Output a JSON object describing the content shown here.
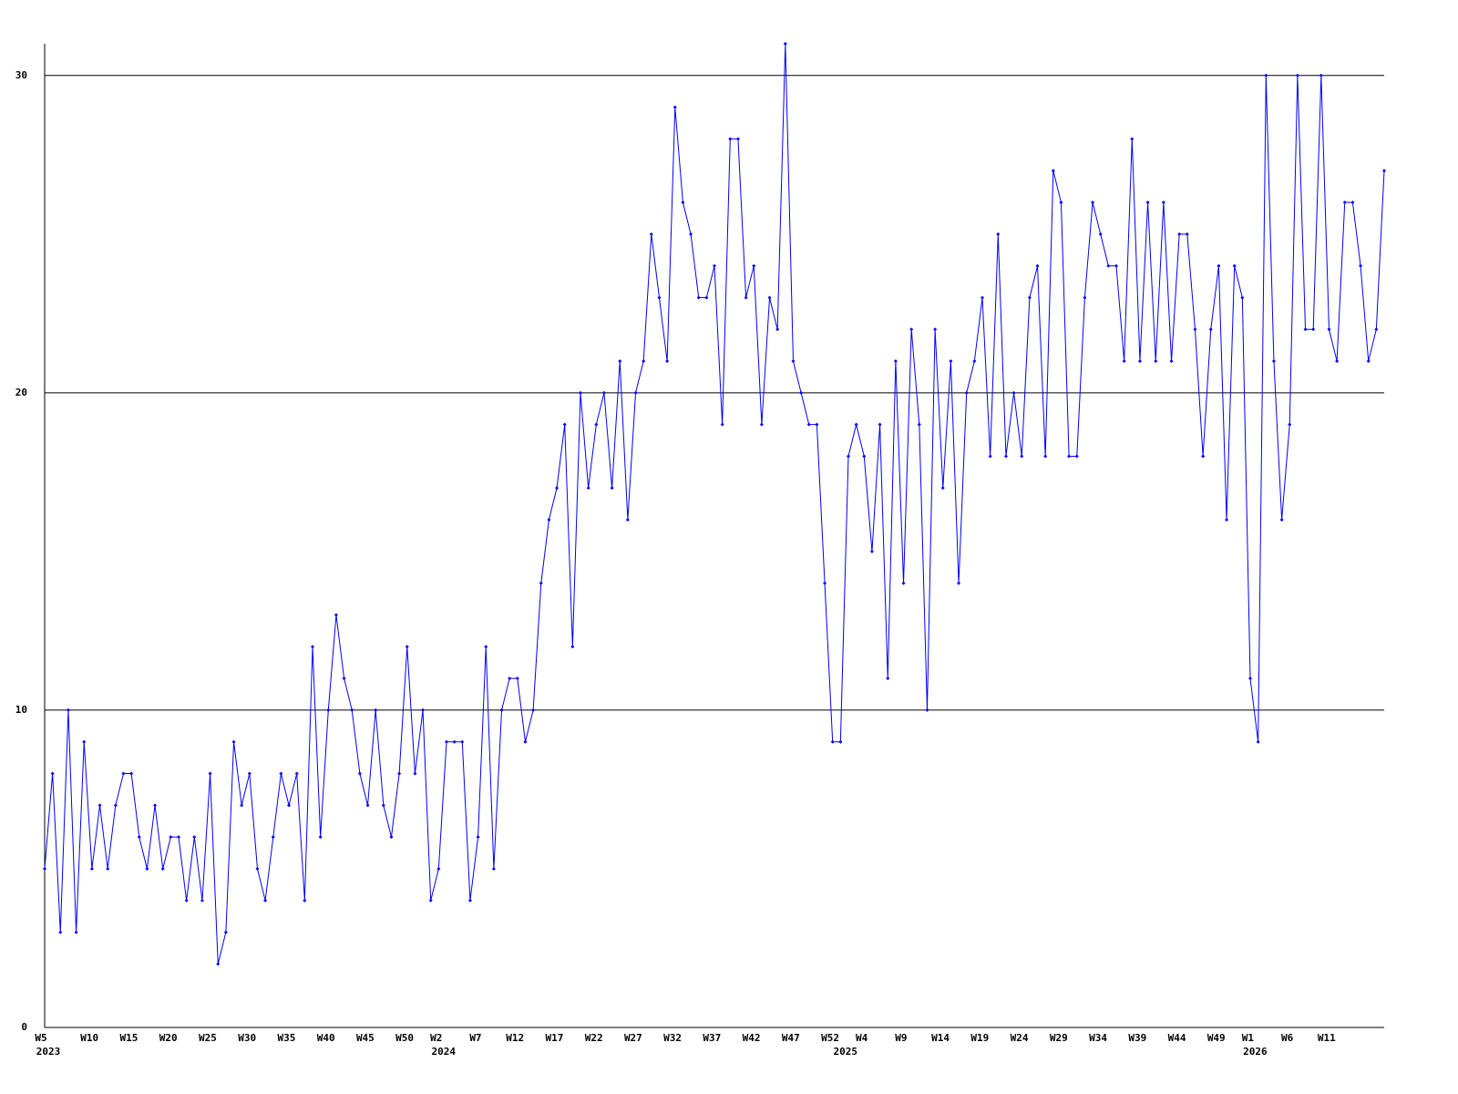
{
  "chart_data": {
    "type": "line",
    "categories": [
      {
        "week": "W5",
        "year": "2023"
      },
      null,
      null,
      null,
      null,
      "W10",
      null,
      null,
      null,
      null,
      "W15",
      null,
      null,
      null,
      null,
      "W20",
      null,
      null,
      null,
      null,
      "W25",
      null,
      null,
      null,
      null,
      "W30",
      null,
      null,
      null,
      null,
      "W35",
      null,
      null,
      null,
      null,
      "W40",
      null,
      null,
      null,
      null,
      "W45",
      null,
      null,
      null,
      null,
      "W50",
      null,
      null,
      null,
      {
        "week": "W2",
        "year": "2024"
      },
      null,
      null,
      null,
      null,
      "W7",
      null,
      null,
      null,
      null,
      "W12",
      null,
      null,
      null,
      null,
      "W17",
      null,
      null,
      null,
      null,
      "W22",
      null,
      null,
      null,
      null,
      "W27",
      null,
      null,
      null,
      null,
      "W32",
      null,
      null,
      null,
      null,
      "W37",
      null,
      null,
      null,
      null,
      "W42",
      null,
      null,
      null,
      null,
      "W47",
      null,
      null,
      null,
      null,
      "W52",
      {
        "year": "2025"
      },
      null,
      null,
      "W4",
      null,
      null,
      null,
      null,
      "W9",
      null,
      null,
      null,
      null,
      "W14",
      null,
      null,
      null,
      null,
      "W19",
      null,
      null,
      null,
      null,
      "W24",
      null,
      null,
      null,
      null,
      "W29",
      null,
      null,
      null,
      null,
      "W34",
      null,
      null,
      null,
      null,
      "W39",
      null,
      null,
      null,
      null,
      "W44",
      null,
      null,
      null,
      null,
      "W49",
      null,
      null,
      null,
      {
        "week": "W1",
        "year": "2026"
      },
      null,
      null,
      null,
      null,
      "W6",
      null,
      null,
      null,
      null,
      "W11",
      null,
      null,
      null,
      null,
      null,
      null,
      null,
      null
    ],
    "series": [
      {
        "color": "#0000ff",
        "values": [
          5,
          8,
          3,
          10,
          3,
          9,
          5,
          7,
          5,
          7,
          8,
          8,
          6,
          5,
          7,
          5,
          6,
          6,
          4,
          6,
          4,
          8,
          2,
          3,
          9,
          7,
          8,
          5,
          4,
          6,
          8,
          7,
          8,
          4,
          12,
          6,
          10,
          13,
          11,
          10,
          8,
          7,
          10,
          7,
          6,
          8,
          12,
          8,
          10,
          4,
          5,
          9,
          9,
          9,
          4,
          6,
          12,
          5,
          10,
          11,
          11,
          9,
          10,
          14,
          16,
          17,
          19,
          12,
          20,
          17,
          19,
          20,
          17,
          21,
          16,
          20,
          21,
          25,
          23,
          21,
          29,
          26,
          25,
          23,
          23,
          24,
          19,
          28,
          28,
          23,
          24,
          19,
          23,
          22,
          31,
          21,
          20,
          19,
          19,
          14,
          9,
          9,
          18,
          19,
          18,
          15,
          19,
          11,
          21,
          14,
          22,
          19,
          10,
          22,
          17,
          21,
          14,
          20,
          21,
          23,
          18,
          25,
          18,
          20,
          18,
          23,
          24,
          18,
          27,
          26,
          18,
          18,
          23,
          26,
          25,
          24,
          24,
          21,
          28,
          21,
          26,
          21,
          26,
          21,
          25,
          25,
          22,
          18,
          22,
          24,
          16,
          24,
          23,
          11,
          9,
          30,
          21,
          16,
          19,
          30,
          22,
          22,
          30,
          22,
          21,
          26,
          26,
          24,
          21,
          22,
          27
        ]
      }
    ],
    "ylim": [
      0,
      31
    ],
    "yticks": [
      0,
      10,
      20,
      30
    ],
    "grid": true
  }
}
